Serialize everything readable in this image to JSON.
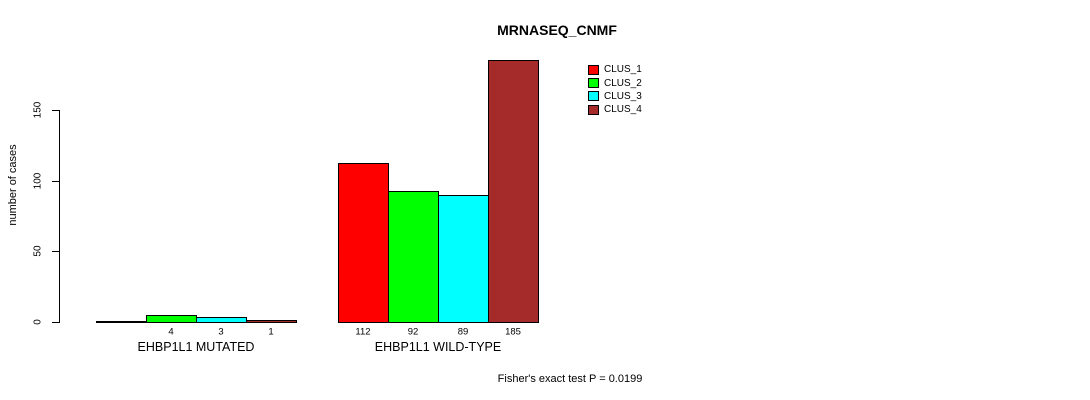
{
  "title": "MRNASEQ_CNMF",
  "footnote": "Fisher's exact test P = 0.0199",
  "chart_data": {
    "type": "bar",
    "title": "MRNASEQ_CNMF",
    "xlabel": "",
    "ylabel": "number of cases",
    "ylim": [
      0,
      185
    ],
    "yticks": [
      0,
      50,
      100,
      150
    ],
    "grid": false,
    "legend_position": "top-right",
    "categories": [
      "EHBP1L1 MUTATED",
      "EHBP1L1 WILD-TYPE"
    ],
    "series": [
      {
        "name": "CLUS_1",
        "color": "#ff0000",
        "values": [
          0,
          112
        ]
      },
      {
        "name": "CLUS_2",
        "color": "#00ff00",
        "values": [
          4,
          92
        ]
      },
      {
        "name": "CLUS_3",
        "color": "#00ffff",
        "values": [
          3,
          89
        ]
      },
      {
        "name": "CLUS_4",
        "color": "#a52a2a",
        "values": [
          1,
          185
        ]
      }
    ],
    "bar_value_labels": [
      [
        "",
        "4",
        "3",
        "1"
      ],
      [
        "112",
        "92",
        "89",
        "185"
      ]
    ],
    "annotation": "Fisher's exact test P = 0.0199",
    "axis_color": "#000000",
    "background_color": "#ffffff"
  }
}
